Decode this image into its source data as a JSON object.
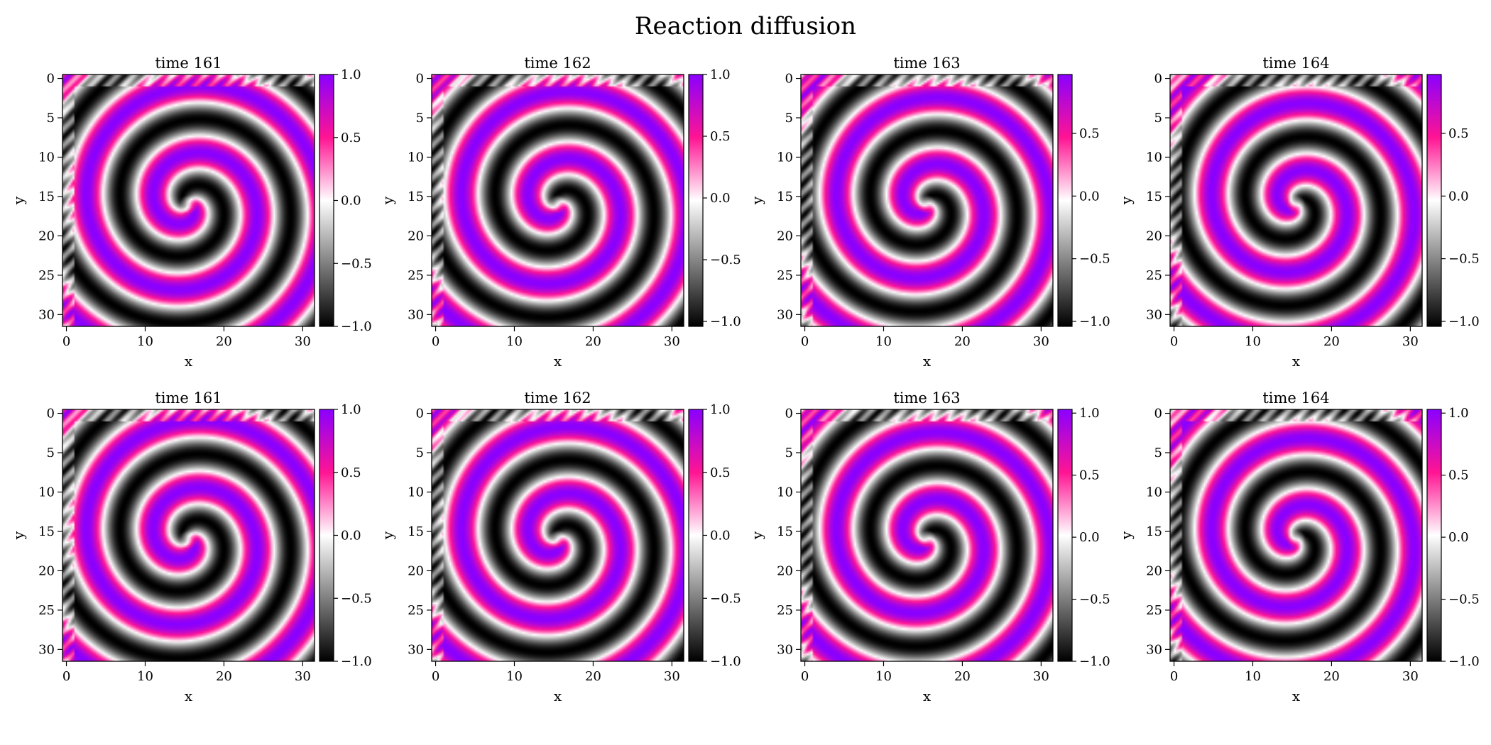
{
  "chart_data": {
    "type": "heatmap",
    "title": "Reaction diffusion",
    "colormap": [
      "#000000",
      "#ffffff",
      "#ff1493",
      "#8a00ff"
    ],
    "field": {
      "grid_size": 32,
      "center": [
        15.5,
        16.0
      ],
      "arms": 2,
      "wavelength": 8.6,
      "description_note": ""
    },
    "panels": [
      {
        "title": "time 161",
        "xlabel": "x",
        "ylabel": "y",
        "x_ticks": [
          0,
          10,
          20,
          30
        ],
        "y_ticks": [
          0,
          5,
          10,
          15,
          20,
          25,
          30
        ],
        "xlim": [
          -0.5,
          31.5
        ],
        "ylim": [
          31.5,
          -0.5
        ],
        "colorbar": {
          "range": [
            -1.0,
            1.0
          ],
          "ticks": [
            "1.0",
            "0.5",
            "0.0",
            "−0.5",
            "−1.0"
          ],
          "tick_values": [
            1.0,
            0.5,
            0.0,
            -0.5,
            -1.0
          ]
        },
        "phase": 0.0
      },
      {
        "title": "time 162",
        "xlabel": "x",
        "ylabel": "y",
        "x_ticks": [
          0,
          10,
          20,
          30
        ],
        "y_ticks": [
          0,
          5,
          10,
          15,
          20,
          25,
          30
        ],
        "xlim": [
          -0.5,
          31.5
        ],
        "ylim": [
          31.5,
          -0.5
        ],
        "colorbar": {
          "range": [
            -1.04,
            1.0
          ],
          "ticks": [
            "1.0",
            "0.5",
            "0.0",
            "−0.5",
            "−1.0"
          ],
          "tick_values": [
            1.0,
            0.5,
            0.0,
            -0.5,
            -1.0
          ]
        },
        "phase": 0.55
      },
      {
        "title": "time 163",
        "xlabel": "x",
        "ylabel": "y",
        "x_ticks": [
          0,
          10,
          20,
          30
        ],
        "y_ticks": [
          0,
          5,
          10,
          15,
          20,
          25,
          30
        ],
        "xlim": [
          -0.5,
          31.5
        ],
        "ylim": [
          31.5,
          -0.5
        ],
        "colorbar": {
          "range": [
            -1.04,
            0.97
          ],
          "ticks": [
            "0.5",
            "0.0",
            "−0.5",
            "−1.0"
          ],
          "tick_values": [
            0.5,
            0.0,
            -0.5,
            -1.0
          ]
        },
        "phase": 1.1
      },
      {
        "title": "time 164",
        "xlabel": "x",
        "ylabel": "y",
        "x_ticks": [
          0,
          10,
          20,
          30
        ],
        "y_ticks": [
          0,
          5,
          10,
          15,
          20,
          25,
          30
        ],
        "xlim": [
          -0.5,
          31.5
        ],
        "ylim": [
          31.5,
          -0.5
        ],
        "colorbar": {
          "range": [
            -1.04,
            0.97
          ],
          "ticks": [
            "0.5",
            "0.0",
            "−0.5",
            "−1.0"
          ],
          "tick_values": [
            0.5,
            0.0,
            -0.5,
            -1.0
          ]
        },
        "phase": 1.65
      },
      {
        "title": "time 161",
        "xlabel": "x",
        "ylabel": "y",
        "x_ticks": [
          0,
          10,
          20,
          30
        ],
        "y_ticks": [
          0,
          5,
          10,
          15,
          20,
          25,
          30
        ],
        "xlim": [
          -0.5,
          31.5
        ],
        "ylim": [
          31.5,
          -0.5
        ],
        "colorbar": {
          "range": [
            -1.0,
            1.0
          ],
          "ticks": [
            "1.0",
            "0.5",
            "0.0",
            "−0.5",
            "−1.0"
          ],
          "tick_values": [
            1.0,
            0.5,
            0.0,
            -0.5,
            -1.0
          ]
        },
        "phase": 0.0
      },
      {
        "title": "time 162",
        "xlabel": "x",
        "ylabel": "y",
        "x_ticks": [
          0,
          10,
          20,
          30
        ],
        "y_ticks": [
          0,
          5,
          10,
          15,
          20,
          25,
          30
        ],
        "xlim": [
          -0.5,
          31.5
        ],
        "ylim": [
          31.5,
          -0.5
        ],
        "colorbar": {
          "range": [
            -1.0,
            1.0
          ],
          "ticks": [
            "1.0",
            "0.5",
            "0.0",
            "−0.5",
            "−1.0"
          ],
          "tick_values": [
            1.0,
            0.5,
            0.0,
            -0.5,
            -1.0
          ]
        },
        "phase": 0.55
      },
      {
        "title": "time 163",
        "xlabel": "x",
        "ylabel": "y",
        "x_ticks": [
          0,
          10,
          20,
          30
        ],
        "y_ticks": [
          0,
          5,
          10,
          15,
          20,
          25,
          30
        ],
        "xlim": [
          -0.5,
          31.5
        ],
        "ylim": [
          31.5,
          -0.5
        ],
        "colorbar": {
          "range": [
            -1.0,
            1.03
          ],
          "ticks": [
            "1.0",
            "0.5",
            "0.0",
            "−0.5",
            "−1.0"
          ],
          "tick_values": [
            1.0,
            0.5,
            0.0,
            -0.5,
            -1.0
          ]
        },
        "phase": 1.1
      },
      {
        "title": "time 164",
        "xlabel": "x",
        "ylabel": "y",
        "x_ticks": [
          0,
          10,
          20,
          30
        ],
        "y_ticks": [
          0,
          5,
          10,
          15,
          20,
          25,
          30
        ],
        "xlim": [
          -0.5,
          31.5
        ],
        "ylim": [
          31.5,
          -0.5
        ],
        "colorbar": {
          "range": [
            -1.0,
            1.03
          ],
          "ticks": [
            "1.0",
            "0.5",
            "0.0",
            "−0.5",
            "−1.0"
          ],
          "tick_values": [
            1.0,
            0.5,
            0.0,
            -0.5,
            -1.0
          ]
        },
        "phase": 1.65
      }
    ]
  }
}
